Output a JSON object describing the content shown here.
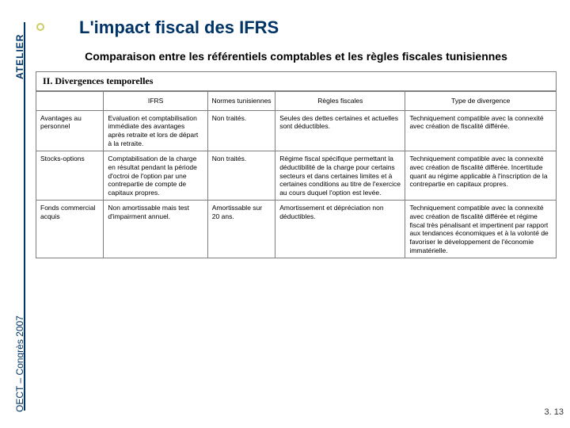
{
  "sideLabels": {
    "top": "ATELIER",
    "bottom": "OECT – Congrès 2007"
  },
  "title": "L'impact fiscal des IFRS",
  "subtitle": "Comparaison entre les référentiels comptables et les règles fiscales tunisiennes",
  "sectionHeader": "II. Divergences temporelles",
  "table": {
    "headers": [
      "",
      "IFRS",
      "Normes tunisiennes",
      "Règles fiscales",
      "Type de divergence"
    ],
    "rows": [
      [
        "Avantages au personnel",
        "Evaluation et comptabilisation immédiate des avantages après retraite et lors de départ à la retraite.",
        "Non traités.",
        "Seules des dettes certaines et actuelles sont déductibles.",
        "Techniquement compatible avec la connexité avec création de fiscalité différée."
      ],
      [
        "Stocks-options",
        "Comptabilisation de la charge en résultat pendant la période d'octroi de l'option par une contrepartie de compte de capitaux propres.",
        "Non traités.",
        "Régime fiscal spécifique permettant la déductibilité de la charge pour certains secteurs et dans certaines limites et à certaines conditions au titre de l'exercice au cours duquel l'option est levée.",
        "Techniquement compatible avec la connexité avec création de fiscalité différée. Incertitude quant au régime applicable à l'inscription de la contrepartie en capitaux propres."
      ],
      [
        "Fonds commercial acquis",
        "Non amortissable mais test d'impairment annuel.",
        "Amortissable sur 20 ans.",
        "Amortissement et dépréciation non déductibles.",
        "Techniquement compatible avec la connexité avec création de fiscalité différée et régime fiscal très pénalisant et impertinent par rapport aux tendances économiques et à la volonté de favoriser le développement de l'économie immatérielle."
      ]
    ]
  },
  "pageNum": "3. 13"
}
